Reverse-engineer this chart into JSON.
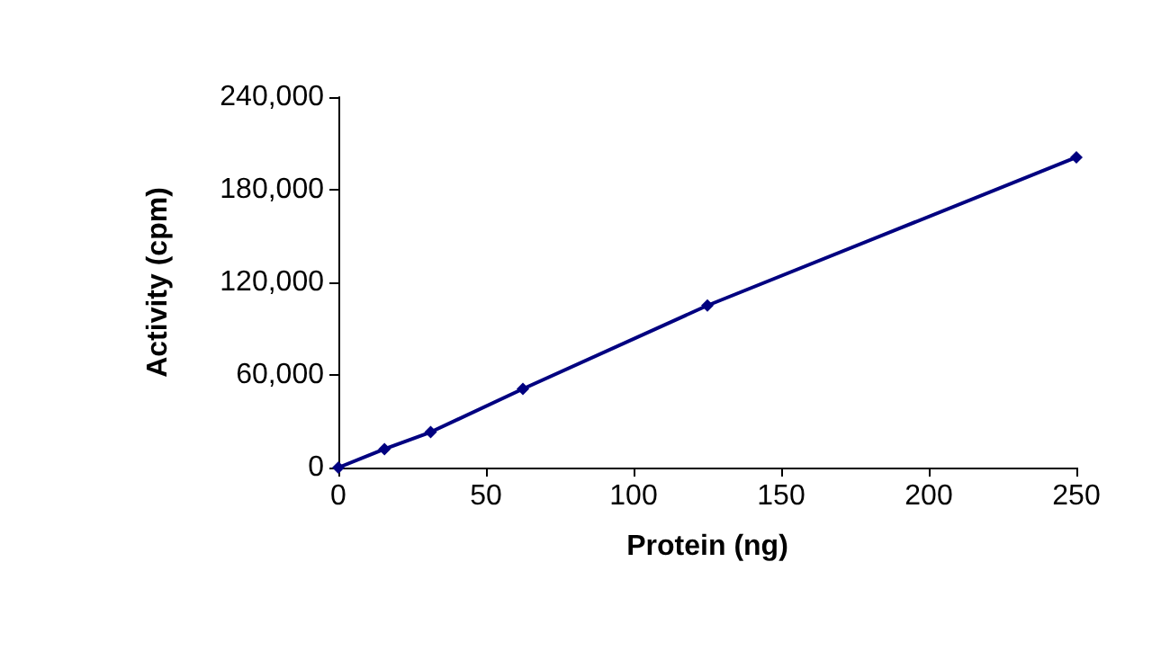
{
  "chart_data": {
    "type": "line",
    "xlabel": "Protein (ng)",
    "ylabel": "Activity (cpm)",
    "x": [
      0,
      15.6,
      31.25,
      62.5,
      125,
      250
    ],
    "series": [
      {
        "color": "#000080",
        "values": [
          0,
          12000,
          23000,
          51000,
          105000,
          201000
        ]
      }
    ],
    "xlim": [
      0,
      250
    ],
    "xticks": [
      0,
      50,
      100,
      150,
      200,
      250
    ],
    "ylim": [
      0,
      240000
    ],
    "yticks": [
      {
        "value": 0,
        "label": "0"
      },
      {
        "value": 60000,
        "label": "60,000"
      },
      {
        "value": 120000,
        "label": "120,000"
      },
      {
        "value": 180000,
        "label": "180,000"
      },
      {
        "value": 240000,
        "label": "240,000"
      }
    ],
    "grid": false,
    "marker": "diamond",
    "line_style": "solid"
  }
}
